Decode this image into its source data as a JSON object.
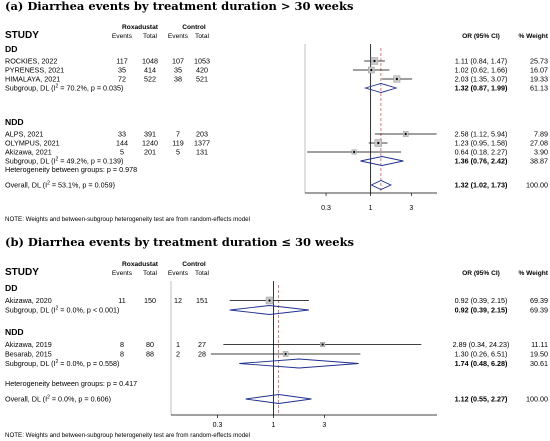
{
  "chart_data": [
    {
      "type": "forest",
      "title": "(a) Diarrhea events by treatment duration > 30 weeks",
      "study_header": "STUDY",
      "arm_labels": [
        "Roxadustat",
        "Control"
      ],
      "col_headers": [
        "Events",
        "Total",
        "Events",
        "Total"
      ],
      "or_header": "OR (95% CI)",
      "weight_header": "% Weight",
      "x_ticks": [
        0.3,
        1,
        3
      ],
      "xlim": [
        0.17,
        6.0
      ],
      "null_value": 1,
      "overall_value": 1.32,
      "groups": [
        {
          "name": "DD",
          "studies": [
            {
              "label": "ROCKIES, 2022",
              "rox_events": "117",
              "rox_total": "1048",
              "ctl_events": "107",
              "ctl_total": "1053",
              "or": 1.11,
              "lo": 0.84,
              "hi": 1.47,
              "ci_text": "1.11 (0.84, 1.47)",
              "weight": "25.73"
            },
            {
              "label": "PYRENESS, 2021",
              "rox_events": "35",
              "rox_total": "414",
              "ctl_events": "35",
              "ctl_total": "420",
              "or": 1.02,
              "lo": 0.62,
              "hi": 1.66,
              "ci_text": "1.02 (0.62, 1.66)",
              "weight": "16.07"
            },
            {
              "label": "HIMALAYA, 2021",
              "rox_events": "72",
              "rox_total": "522",
              "ctl_events": "38",
              "ctl_total": "521",
              "or": 2.03,
              "lo": 1.35,
              "hi": 3.07,
              "ci_text": "2.03 (1.35, 3.07)",
              "weight": "19.33"
            }
          ],
          "subgroup": {
            "label_main": "Subgroup, DL (I",
            "label_sup": "2",
            "label_rest": " = 70.2%, p = 0.035)",
            "or": 1.32,
            "lo": 0.87,
            "hi": 1.99,
            "ci_text": "1.32 (0.87, 1.99)",
            "weight": "61.13"
          }
        },
        {
          "name": "NDD",
          "studies": [
            {
              "label": "ALPS, 2021",
              "rox_events": "33",
              "rox_total": "391",
              "ctl_events": "7",
              "ctl_total": "203",
              "or": 2.58,
              "lo": 1.12,
              "hi": 5.94,
              "ci_text": "2.58 (1.12, 5.94)",
              "weight": "7.89"
            },
            {
              "label": "OLYMPUS, 2021",
              "rox_events": "144",
              "rox_total": "1240",
              "ctl_events": "119",
              "ctl_total": "1377",
              "or": 1.23,
              "lo": 0.95,
              "hi": 1.58,
              "ci_text": "1.23 (0.95, 1.58)",
              "weight": "27.08"
            },
            {
              "label": "Akizawa, 2021",
              "rox_events": "5",
              "rox_total": "201",
              "ctl_events": "5",
              "ctl_total": "131",
              "or": 0.64,
              "lo": 0.18,
              "hi": 2.27,
              "ci_text": "0.64 (0.18, 2.27)",
              "weight": "3.90"
            }
          ],
          "subgroup": {
            "label_main": "Subgroup, DL (I",
            "label_sup": "2",
            "label_rest": " = 49.2%, p = 0.139)",
            "or": 1.36,
            "lo": 0.76,
            "hi": 2.42,
            "ci_text": "1.36 (0.76, 2.42)",
            "weight": "38.87"
          }
        }
      ],
      "heterogeneity_text": "Heterogeneity between groups: p = 0.978",
      "overall": {
        "label_main": "Overall, DL (I",
        "label_sup": "2",
        "label_rest": " = 53.1%, p = 0.059)",
        "or": 1.32,
        "lo": 1.02,
        "hi": 1.73,
        "ci_text": "1.32 (1.02, 1.73)",
        "weight": "100.00"
      },
      "note": "NOTE: Weights and between-subgroup heterogeneity test are from random-effects model"
    },
    {
      "type": "forest",
      "title": "(b) Diarrhea events by treatment duration ≤ 30 weeks",
      "study_header": "STUDY",
      "arm_labels": [
        "Roxadustat",
        "Control"
      ],
      "col_headers": [
        "Events",
        "Total",
        "Events",
        "Total"
      ],
      "or_header": "OR (95% CI)",
      "weight_header": "% Weight",
      "x_ticks": [
        0.3,
        1,
        3
      ],
      "xlim": [
        0.11,
        34
      ],
      "null_value": 1,
      "overall_value": 1.12,
      "groups": [
        {
          "name": "DD",
          "studies": [
            {
              "label": "Akizawa, 2020",
              "rox_events": "11",
              "rox_total": "150",
              "ctl_events": "12",
              "ctl_total": "151",
              "or": 0.92,
              "lo": 0.39,
              "hi": 2.15,
              "ci_text": "0.92 (0.39, 2.15)",
              "weight": "69.39"
            }
          ],
          "subgroup": {
            "label_main": "Subgroup, DL (I",
            "label_sup": "2",
            "label_rest": " = 0.0%, p < 0.001)",
            "or": 0.92,
            "lo": 0.39,
            "hi": 2.15,
            "ci_text": "0.92 (0.39, 2.15)",
            "weight": "69.39"
          }
        },
        {
          "name": "NDD",
          "studies": [
            {
              "label": "Akizawa, 2019",
              "rox_events": "8",
              "rox_total": "80",
              "ctl_events": "1",
              "ctl_total": "27",
              "or": 2.89,
              "lo": 0.34,
              "hi": 24.23,
              "ci_text": "2.89 (0.34, 24.23)",
              "weight": "11.11"
            },
            {
              "label": "Besarab, 2015",
              "rox_events": "8",
              "rox_total": "88",
              "ctl_events": "2",
              "ctl_total": "28",
              "or": 1.3,
              "lo": 0.26,
              "hi": 6.51,
              "ci_text": "1.30 (0.26, 6.51)",
              "weight": "19.50"
            }
          ],
          "subgroup": {
            "label_main": "Subgroup, DL (I",
            "label_sup": "2",
            "label_rest": " = 0.0%, p = 0.558)",
            "or": 1.74,
            "lo": 0.48,
            "hi": 6.28,
            "ci_text": "1.74 (0.48, 6.28)",
            "weight": "30.61"
          }
        }
      ],
      "heterogeneity_text": "Heterogeneity between groups: p = 0.417",
      "overall": {
        "label_main": "Overall, DL (I",
        "label_sup": "2",
        "label_rest": " = 0.0%, p = 0.606)",
        "or": 1.12,
        "lo": 0.55,
        "hi": 2.27,
        "ci_text": "1.12 (0.55, 2.27)",
        "weight": "100.00"
      },
      "note": "NOTE: Weights and between-subgroup heterogeneity test are from random-effects model"
    }
  ]
}
